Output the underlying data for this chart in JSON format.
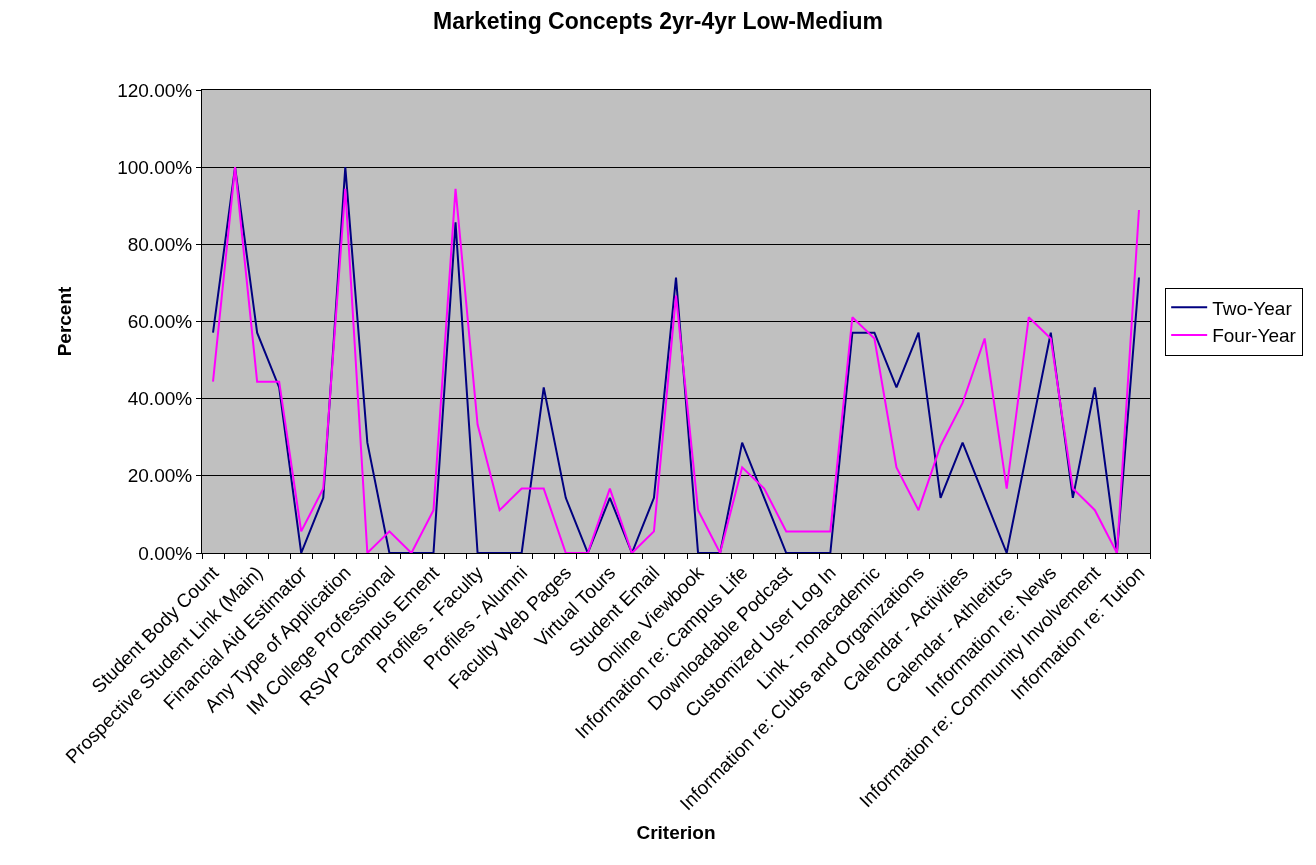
{
  "chart_data": {
    "type": "line",
    "title": "Marketing Concepts 2yr-4yr Low-Medium",
    "xlabel": "Criterion",
    "ylabel": "Percent",
    "categories": [
      "Student Body Count",
      null,
      "Prospective Student Link (Main)",
      null,
      "Financial Aid Estimator",
      null,
      "Any Type of Application",
      null,
      "IM College Professional",
      null,
      "RSVP Campus Ement",
      null,
      "Profiles - Faculty",
      null,
      "Profiles - Alumni",
      null,
      "Faculty Web Pages",
      null,
      "Virtual Tours",
      null,
      "Student Email",
      null,
      "Online Viewbook",
      null,
      "Information re: Campus Life",
      null,
      "Downloadable Podcast",
      null,
      "Customized User Log In",
      null,
      "Link - nonacademic",
      null,
      "Information re: Clubs and Organizations",
      null,
      "Calendar - Activities",
      null,
      "Calendar - Athletitcs",
      null,
      "Information re: News",
      null,
      "Information re: Community Involvement",
      null,
      "Information re: Tution"
    ],
    "series": [
      {
        "name": "Two-Year",
        "color": "#000080",
        "values": [
          57.1,
          100,
          57.1,
          42.9,
          0,
          14.3,
          100,
          28.6,
          0,
          0,
          0,
          85.7,
          0,
          0,
          0,
          42.9,
          14.3,
          0,
          14.3,
          0,
          14.3,
          71.4,
          0,
          0,
          28.6,
          14.3,
          0,
          0,
          0,
          57.1,
          57.1,
          42.9,
          57.1,
          14.3,
          28.6,
          14.3,
          0,
          28.6,
          57.1,
          14.3,
          42.9,
          0,
          71.4
        ]
      },
      {
        "name": "Four-Year",
        "color": "#ff00ff",
        "values": [
          44.4,
          100,
          44.4,
          44.4,
          5.6,
          16.7,
          94.4,
          0,
          5.6,
          0,
          11.1,
          94.4,
          33.3,
          11.1,
          16.7,
          16.7,
          0,
          0,
          16.7,
          0,
          5.6,
          66.7,
          11.1,
          0,
          22.2,
          16.7,
          5.6,
          5.6,
          5.6,
          61.1,
          55.6,
          22.2,
          11.1,
          27.8,
          38.9,
          55.6,
          16.7,
          61.1,
          55.6,
          16.7,
          11.1,
          0,
          88.9
        ]
      }
    ],
    "ylim": [
      0,
      120
    ],
    "yticks": [
      {
        "value": 0,
        "label": "0.00%"
      },
      {
        "value": 20,
        "label": "20.00%"
      },
      {
        "value": 40,
        "label": "40.00%"
      },
      {
        "value": 60,
        "label": "60.00%"
      },
      {
        "value": 80,
        "label": "80.00%"
      },
      {
        "value": 100,
        "label": "100.00%"
      },
      {
        "value": 120,
        "label": "120.00%"
      }
    ],
    "grid": "y",
    "legend": "right",
    "marker": "none",
    "line_style": "solid"
  }
}
